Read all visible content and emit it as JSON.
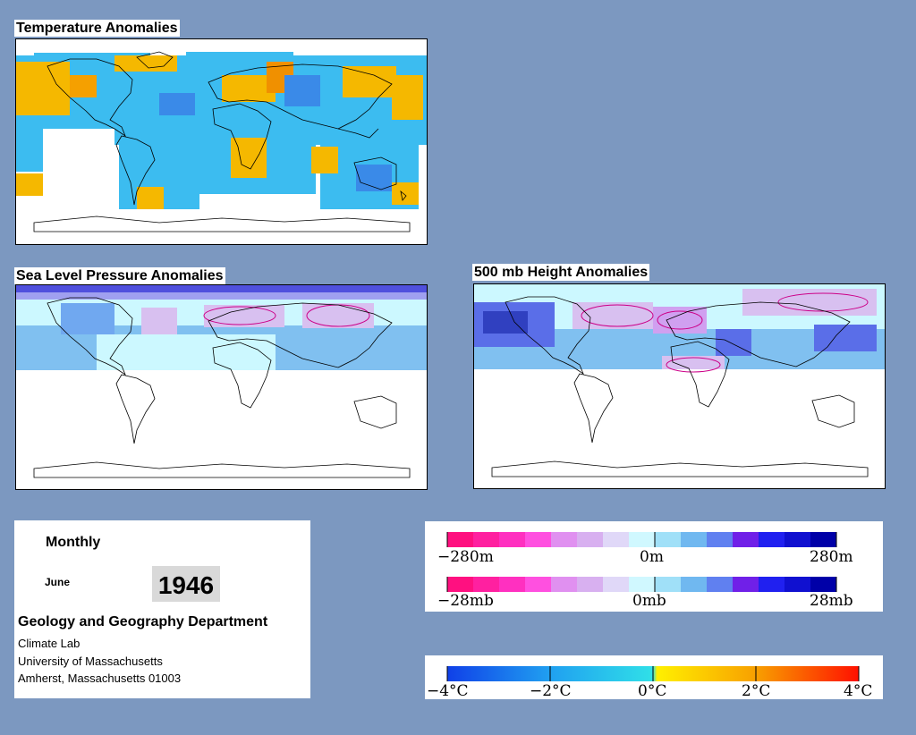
{
  "maps": {
    "temperature": {
      "title": "Temperature Anomalies"
    },
    "pressure": {
      "title": "Sea Level Pressure Anomalies"
    },
    "height": {
      "title": "500 mb Height Anomalies"
    }
  },
  "info": {
    "period": "Monthly",
    "month": "June",
    "year": "1946",
    "department": "Geology and Geography Department",
    "address": [
      "Climate Lab",
      "University of Massachusetts",
      "Amherst, Massachusetts 01003"
    ]
  },
  "legends": {
    "height": {
      "labels": [
        "−280m",
        "0m",
        "280m"
      ]
    },
    "pressure": {
      "labels": [
        "−28mb",
        "0mb",
        "28mb"
      ]
    },
    "temperature": {
      "labels": [
        "−4°C",
        "−2°C",
        "0°C",
        "2°C",
        "4°C"
      ]
    }
  },
  "colors": {
    "background": "#7c98c0",
    "warm": "#f5b800",
    "cool": "#3cbcf0",
    "pink": "#ff007f",
    "blue": "#0000cc"
  }
}
